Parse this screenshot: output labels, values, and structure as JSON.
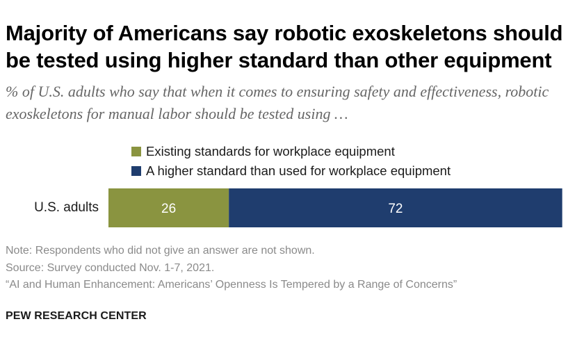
{
  "title": "Majority of Americans say robotic exoskeletons should be tested using higher standard than other equipment",
  "subtitle": "% of U.S. adults who say that when it comes to ensuring safety and effectiveness, robotic exoskeletons for manual labor should be tested using …",
  "colors": {
    "existing": "#8a9440",
    "higher": "#1f3d6e"
  },
  "chart_data": {
    "type": "bar",
    "orientation": "horizontal-stacked",
    "title": "Majority of Americans say robotic exoskeletons should be tested using higher standard than other equipment",
    "categories": [
      "U.S. adults"
    ],
    "series": [
      {
        "name": "Existing standards for workplace equipment",
        "values": [
          26
        ],
        "color": "#8a9440"
      },
      {
        "name": "A higher standard than used for workplace equipment",
        "values": [
          72
        ],
        "color": "#1f3d6e"
      }
    ],
    "xlim": [
      0,
      100
    ],
    "xlabel": "",
    "ylabel": "",
    "grid": false,
    "legend": "top"
  },
  "notes": {
    "note": "Note: Respondents who did not give an answer are not shown.",
    "source": "Source: Survey conducted Nov. 1-7, 2021.",
    "report": "“AI and Human Enhancement: Americans’ Openness Is Tempered by a Range of Concerns”"
  },
  "brand": "PEW RESEARCH CENTER"
}
